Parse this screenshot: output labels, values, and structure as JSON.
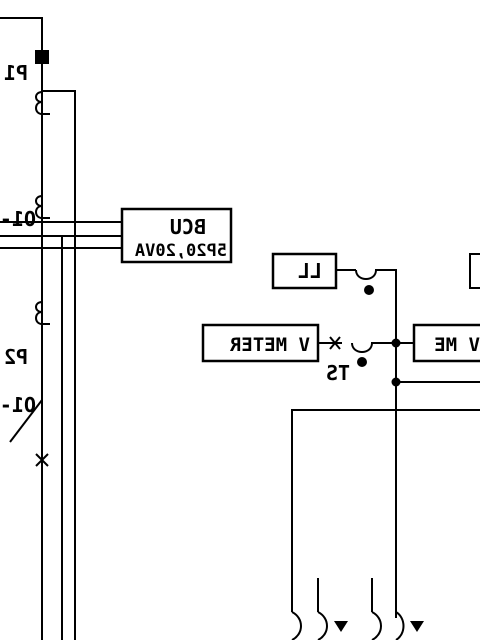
{
  "drawing": {
    "labels": {
      "p1": "P1",
      "o1_top": "O1-",
      "p2": "P2",
      "o1_bottom": "O1-",
      "bcu_title": "BCU",
      "bcu_rating": "5P20,20VA",
      "ll": "LL",
      "v_meter_left": "V METER",
      "v_meter_right": "V ME",
      "ts": "TS"
    },
    "colors": {
      "line": "#000000",
      "background": "#ffffff"
    }
  }
}
